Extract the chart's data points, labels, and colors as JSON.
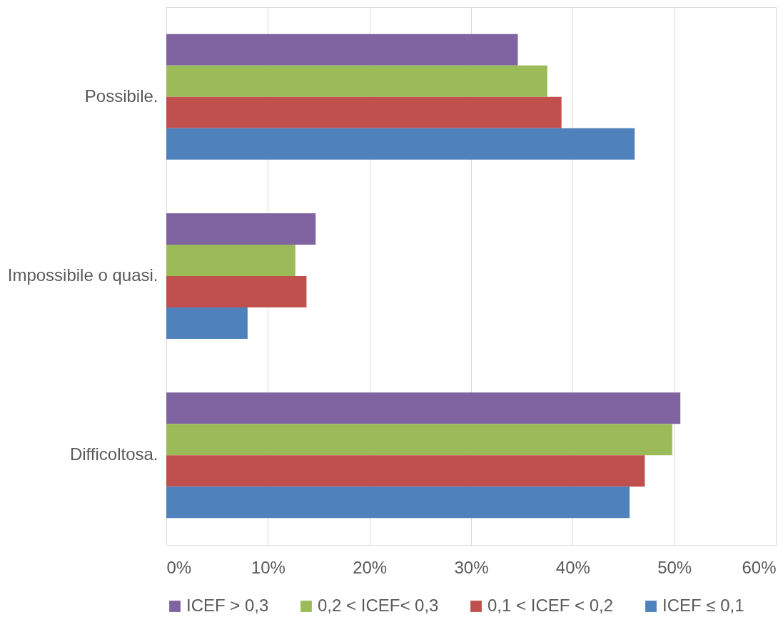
{
  "chart_data": {
    "type": "bar",
    "orientation": "horizontal",
    "categories": [
      "Possibile.",
      "Impossibile o quasi.",
      "Difficoltosa."
    ],
    "series": [
      {
        "name": "ICEF > 0,3",
        "color": "#8064a2",
        "values": [
          34.6,
          14.7,
          50.6
        ]
      },
      {
        "name": "0,2 < ICEF< 0,3",
        "color": "#9bbb59",
        "values": [
          37.5,
          12.7,
          49.8
        ]
      },
      {
        "name": "0,1 < ICEF < 0,2",
        "color": "#c0504d",
        "values": [
          38.9,
          13.8,
          47.1
        ]
      },
      {
        "name": "ICEF ≤ 0,1",
        "color": "#4f81bd",
        "values": [
          46.1,
          8.0,
          45.6
        ]
      }
    ],
    "xlim": [
      0,
      60
    ],
    "xticks": [
      {
        "value": 0,
        "label": "0%"
      },
      {
        "value": 10,
        "label": "10%"
      },
      {
        "value": 20,
        "label": "20%"
      },
      {
        "value": 30,
        "label": "30%"
      },
      {
        "value": 40,
        "label": "40%"
      },
      {
        "value": 50,
        "label": "50%"
      },
      {
        "value": 60,
        "label": "60%"
      }
    ],
    "grid": "x",
    "legend": "bottom"
  }
}
